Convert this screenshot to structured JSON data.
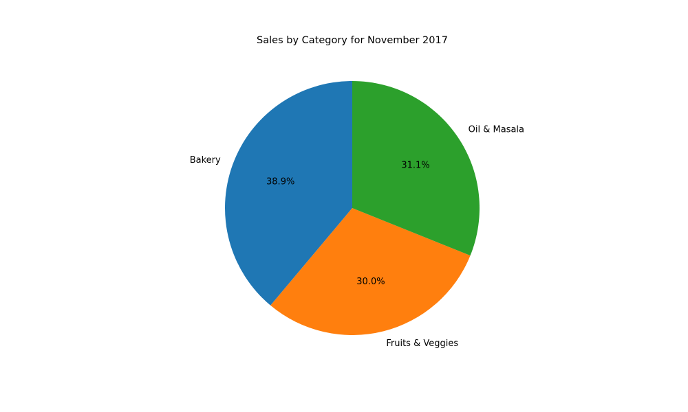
{
  "chart_data": {
    "type": "pie",
    "title": "Sales by Category for November 2017",
    "categories": [
      "Bakery",
      "Fruits & Veggies",
      "Oil & Masala"
    ],
    "values": [
      38.9,
      30.0,
      31.1
    ],
    "percent_labels": [
      "38.9%",
      "30.0%",
      "31.1%"
    ],
    "colors": [
      "#1f77b4",
      "#ff7f0e",
      "#2ca02c"
    ],
    "start_angle_deg": 90,
    "direction": "counterclockwise",
    "legend": "none"
  }
}
